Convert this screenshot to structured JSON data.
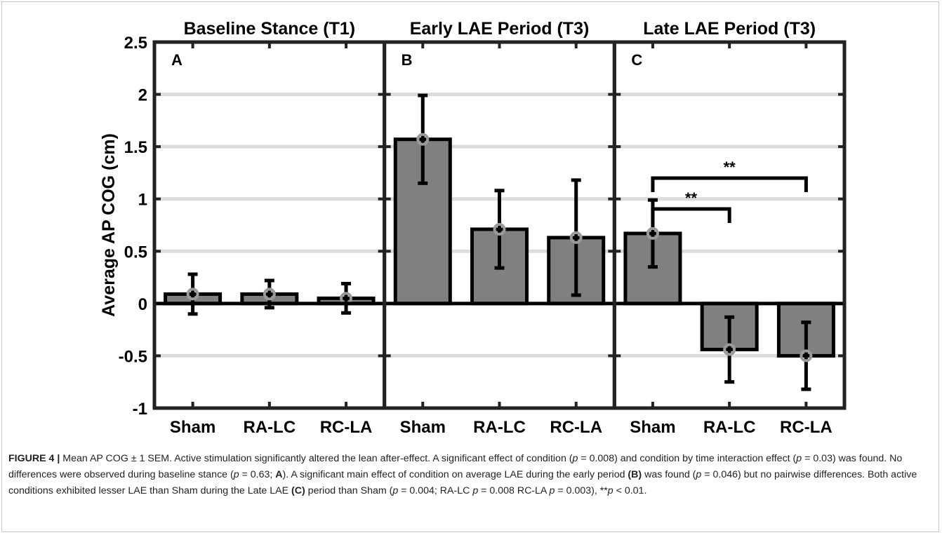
{
  "chart_data": {
    "type": "bar",
    "ylabel": "Average AP COG (cm)",
    "ylim": [
      -1,
      2.5
    ],
    "yticks": [
      -1,
      -0.5,
      0,
      0.5,
      1,
      1.5,
      2,
      2.5
    ],
    "ytick_labels": [
      "-1",
      "-0.5",
      "0",
      "0.5",
      "1",
      "1.5",
      "2",
      "2.5"
    ],
    "grid": "horizontal",
    "categories": [
      "Sham",
      "RA-LC",
      "RC-LA"
    ],
    "panels": [
      {
        "letter": "A",
        "title": "Baseline Stance (T1)",
        "values": [
          0.09,
          0.09,
          0.05
        ],
        "error": [
          0.19,
          0.13,
          0.14
        ],
        "significance": []
      },
      {
        "letter": "B",
        "title": "Early LAE Period (T3)",
        "values": [
          1.57,
          0.71,
          0.63
        ],
        "error": [
          0.42,
          0.37,
          0.55
        ],
        "significance": []
      },
      {
        "letter": "C",
        "title": "Late LAE Period (T3)",
        "values": [
          0.67,
          -0.44,
          -0.5
        ],
        "error": [
          0.32,
          0.31,
          0.32
        ],
        "significance": [
          {
            "from": 0,
            "to": 1,
            "label": "**"
          },
          {
            "from": 0,
            "to": 2,
            "label": "**"
          }
        ]
      }
    ]
  },
  "caption": {
    "parts": [
      {
        "text": "FIGURE 4 | ",
        "style": "figlabel"
      },
      {
        "text": "Mean AP COG ± 1 SEM. Active stimulation significantly altered the lean after-effect. A significant effect of condition (",
        "style": ""
      },
      {
        "text": "p",
        "style": "ital"
      },
      {
        "text": " = 0.008) and condition by time interaction effect (",
        "style": ""
      },
      {
        "text": "p",
        "style": "ital"
      },
      {
        "text": " = 0.03) was found. No differences were observed during baseline stance (",
        "style": ""
      },
      {
        "text": "p",
        "style": "ital"
      },
      {
        "text": " = 0.63; ",
        "style": ""
      },
      {
        "text": "A",
        "style": "bold"
      },
      {
        "text": "). A significant main effect of condition on average LAE during the early period ",
        "style": ""
      },
      {
        "text": "(B)",
        "style": "bold"
      },
      {
        "text": " was found (",
        "style": ""
      },
      {
        "text": "p",
        "style": "ital"
      },
      {
        "text": " = 0.046) but no pairwise differences. Both active conditions exhibited lesser LAE than Sham during the Late LAE ",
        "style": ""
      },
      {
        "text": "(C)",
        "style": "bold"
      },
      {
        "text": " period than Sham (",
        "style": ""
      },
      {
        "text": "p",
        "style": "ital"
      },
      {
        "text": " = 0.004; RA-LC ",
        "style": ""
      },
      {
        "text": "p",
        "style": "ital"
      },
      {
        "text": " = 0.008 RC-LA ",
        "style": ""
      },
      {
        "text": "p",
        "style": "ital"
      },
      {
        "text": " = 0.003), **",
        "style": ""
      },
      {
        "text": "p",
        "style": "ital"
      },
      {
        "text": " < 0.01.",
        "style": ""
      }
    ]
  },
  "colors": {
    "bar_fill": "#808080",
    "bar_stroke": "#000000",
    "grid": "#dcdcdc",
    "marker": "#9a9a9a"
  }
}
